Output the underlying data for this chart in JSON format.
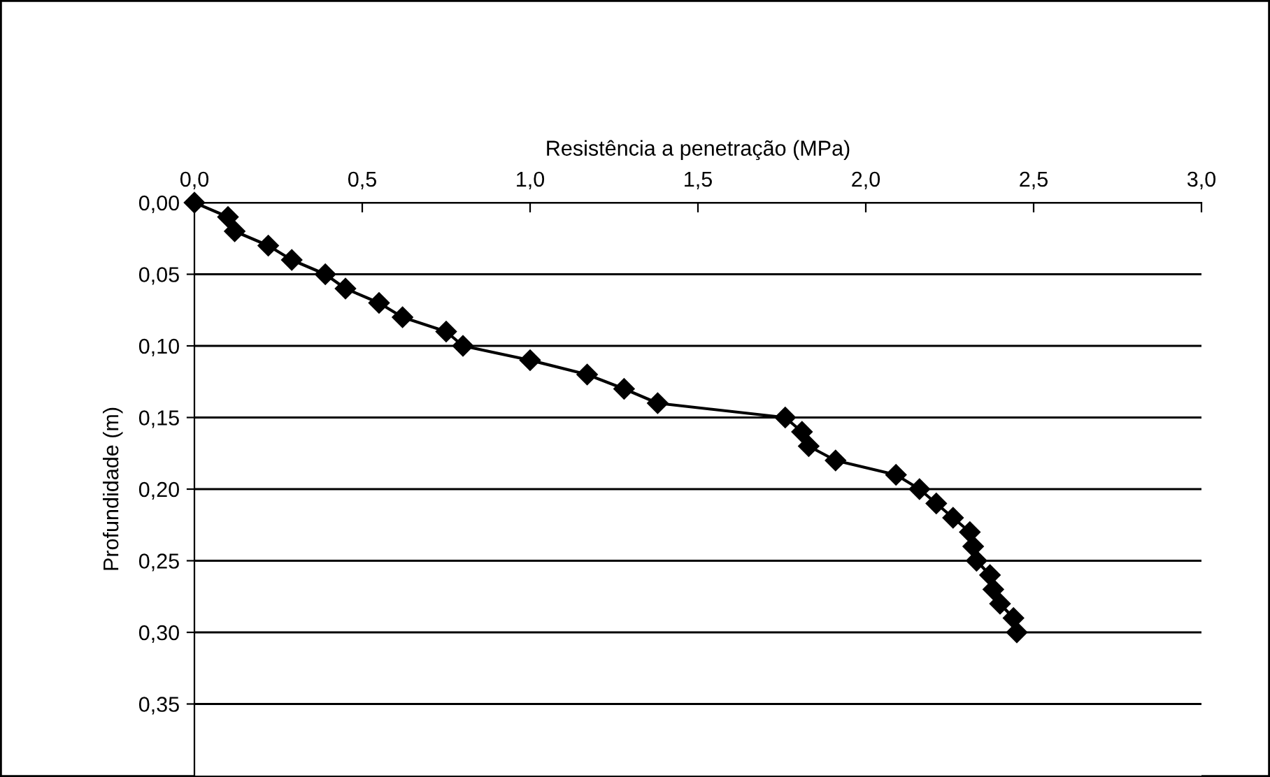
{
  "chart_data": {
    "type": "line",
    "xlabel": "Resistência a penetração (MPa)",
    "ylabel": "Profundidade (m)",
    "x": [
      0,
      0.1,
      0.12,
      0.22,
      0.29,
      0.39,
      0.45,
      0.55,
      0.62,
      0.75,
      0.8,
      1.0,
      1.17,
      1.28,
      1.38,
      1.76,
      1.81,
      1.83,
      1.91,
      2.09,
      2.16,
      2.21,
      2.26,
      2.31,
      2.32,
      2.33,
      2.37,
      2.38,
      2.4,
      2.44,
      2.45
    ],
    "series": [
      {
        "color": "#000000",
        "values": [
          0,
          0.01,
          0.02,
          0.03,
          0.04,
          0.05,
          0.06,
          0.07,
          0.08,
          0.09,
          0.1,
          0.11,
          0.12,
          0.13,
          0.14,
          0.15,
          0.16,
          0.17,
          0.18,
          0.19,
          0.2,
          0.21,
          0.22,
          0.23,
          0.24,
          0.25,
          0.26,
          0.27,
          0.28,
          0.29,
          0.3
        ]
      }
    ],
    "xlim": [
      0,
      3.0
    ],
    "xticks": [
      {
        "value": 0,
        "label": "0,0"
      },
      {
        "value": 0.5,
        "label": "0,5"
      },
      {
        "value": 1.0,
        "label": "1,0"
      },
      {
        "value": 1.5,
        "label": "1,5"
      },
      {
        "value": 2.0,
        "label": "2,0"
      },
      {
        "value": 2.5,
        "label": "2,5"
      },
      {
        "value": 3.0,
        "label": "3,0"
      }
    ],
    "ylim": [
      0.4,
      0
    ],
    "yticks": [
      {
        "value": 0,
        "label": "0,00"
      },
      {
        "value": 0.05,
        "label": "0,05"
      },
      {
        "value": 0.1,
        "label": "0,10"
      },
      {
        "value": 0.15,
        "label": "0,15"
      },
      {
        "value": 0.2,
        "label": "0,20"
      },
      {
        "value": 0.25,
        "label": "0,25"
      },
      {
        "value": 0.3,
        "label": "0,30"
      },
      {
        "value": 0.35,
        "label": "0,35"
      }
    ],
    "grid": "y",
    "marker": "diamond",
    "line_style": "solid",
    "legend": false
  }
}
